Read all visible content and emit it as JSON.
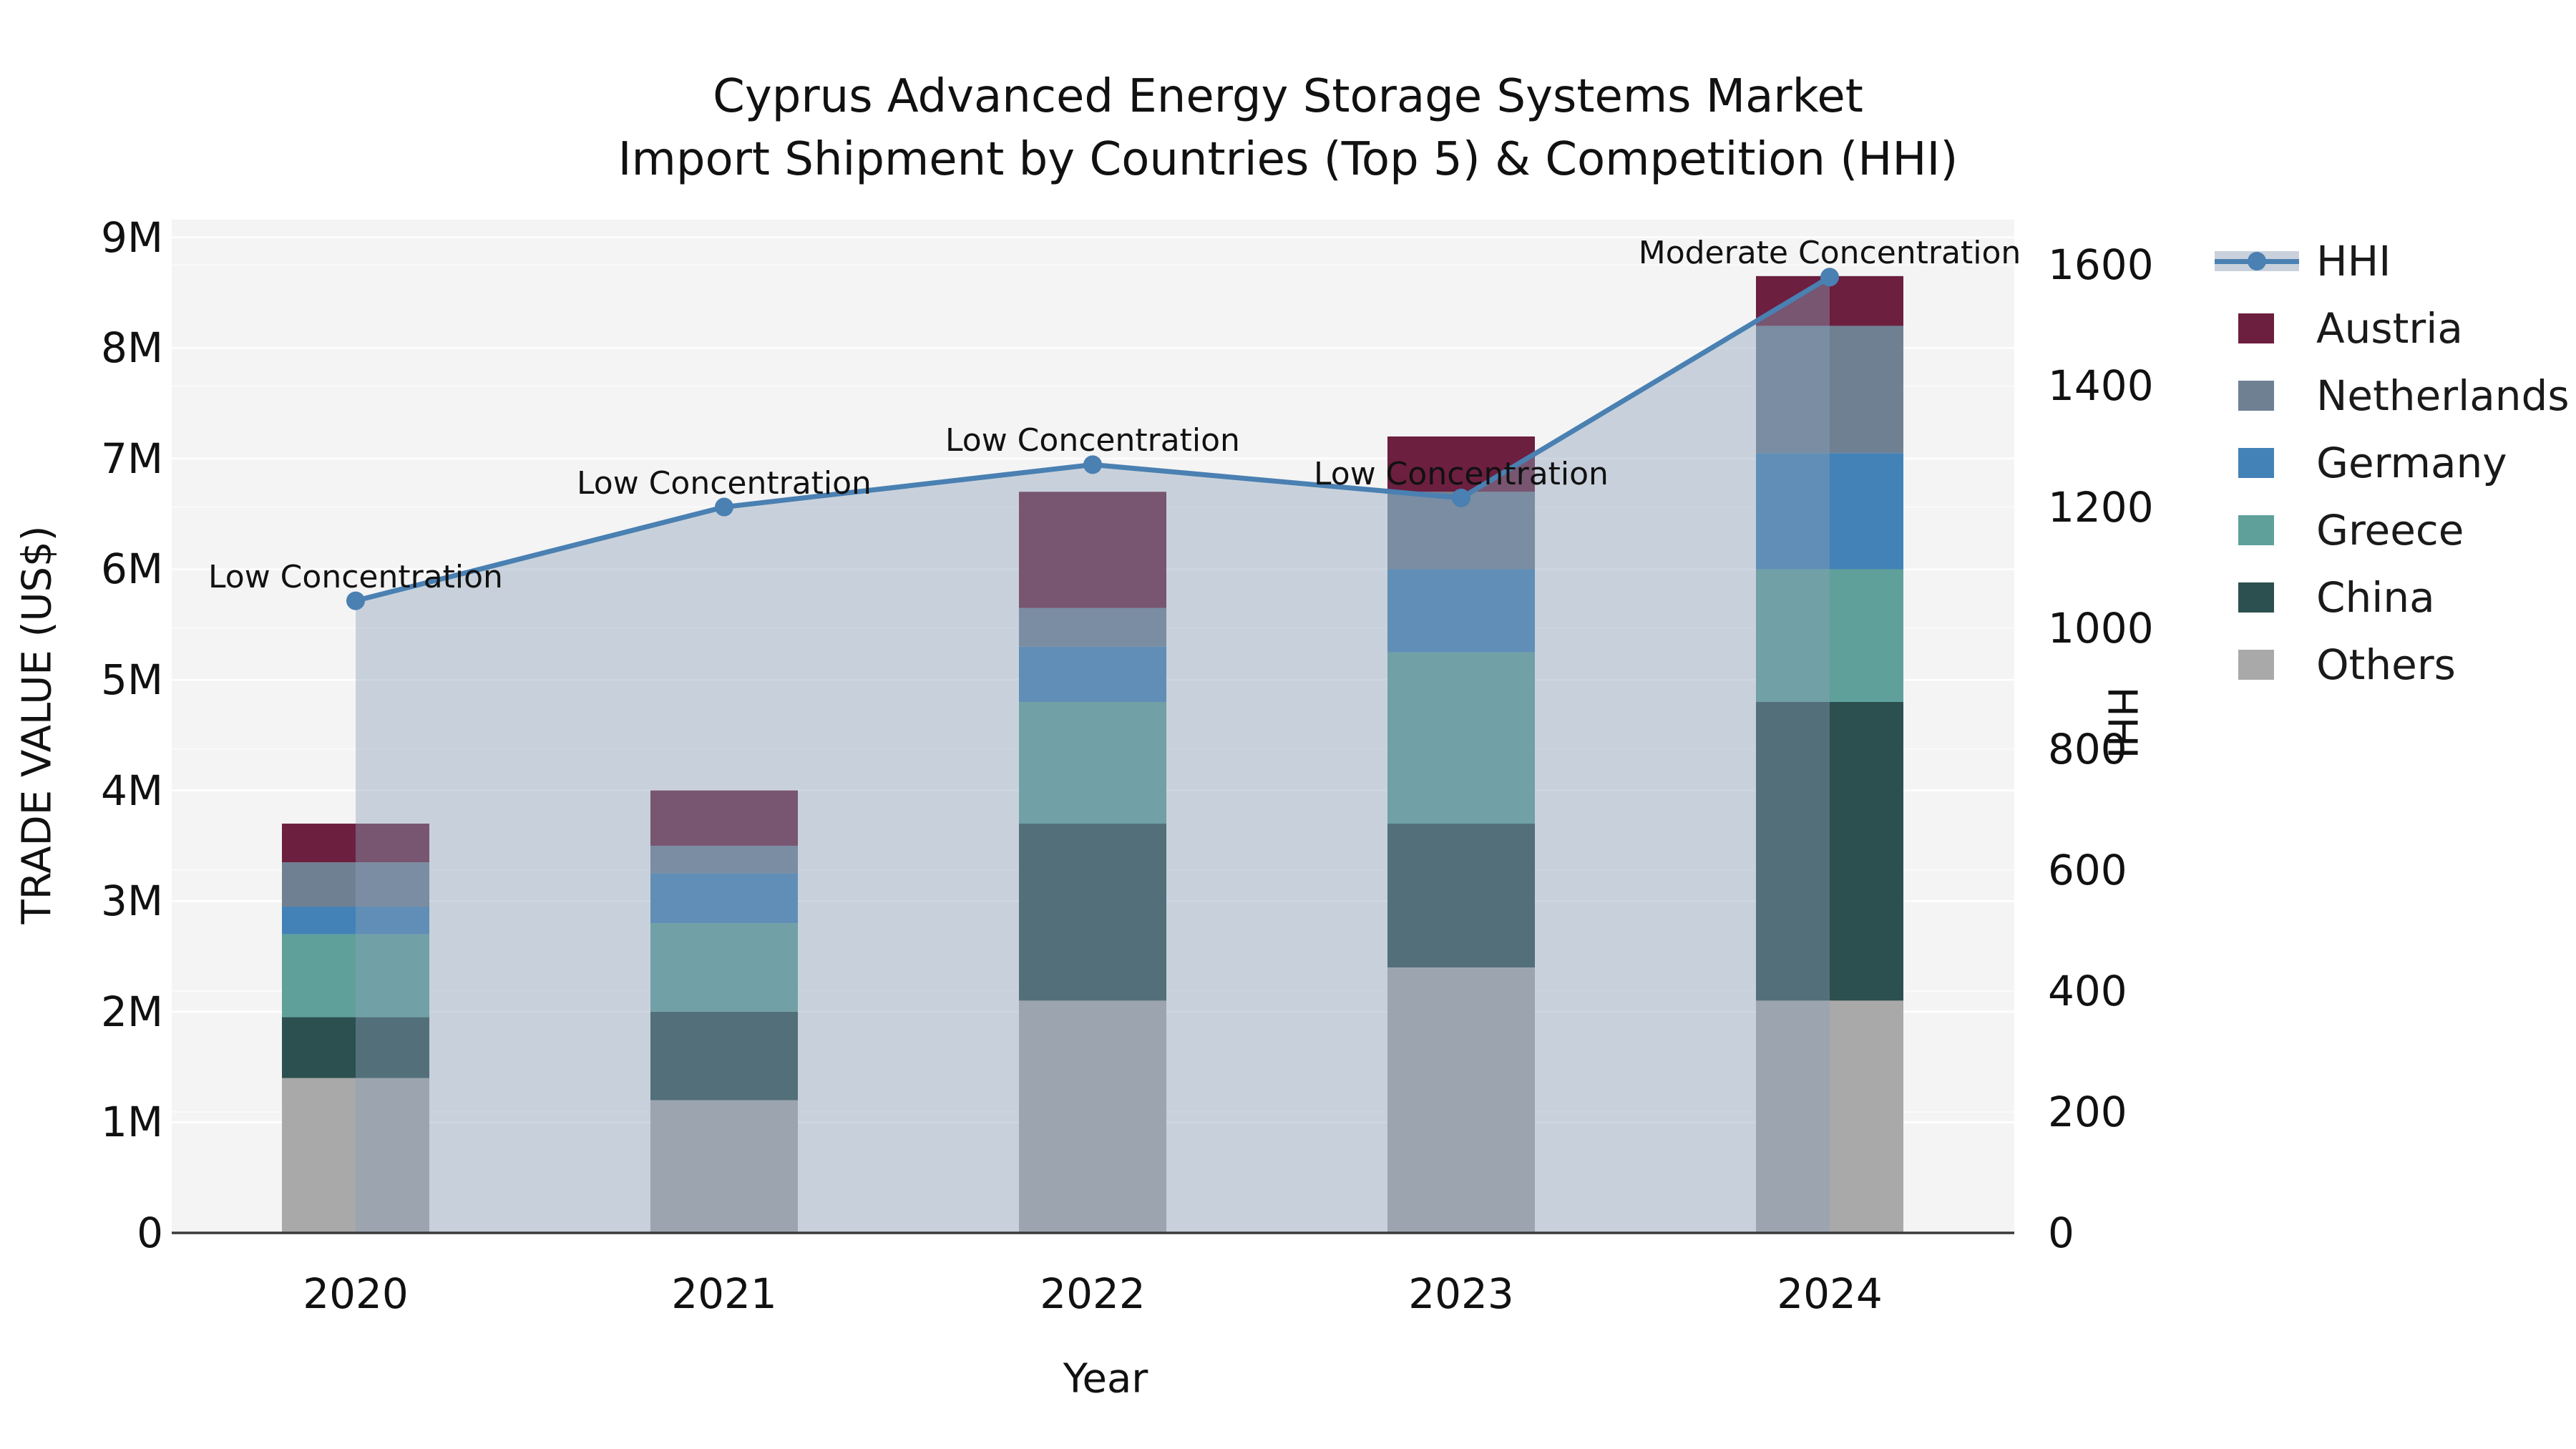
{
  "title": {
    "line1": "Cyprus Advanced Energy Storage Systems Market",
    "line2": "Import Shipment by Countries (Top 5) & Competition (HHI)"
  },
  "chart_data": {
    "type": "bar",
    "subtype": "stacked-bars-with-line-overlay",
    "categories": [
      "2020",
      "2021",
      "2022",
      "2023",
      "2024"
    ],
    "series": [
      {
        "name": "Others",
        "color": "#a9a9a9",
        "values": [
          1.4,
          1.2,
          2.1,
          2.4,
          2.1
        ]
      },
      {
        "name": "China",
        "color": "#2c4f4f",
        "values": [
          0.55,
          0.8,
          1.6,
          1.3,
          2.7
        ]
      },
      {
        "name": "Greece",
        "color": "#5fa09b",
        "values": [
          0.75,
          0.8,
          1.1,
          1.55,
          1.2
        ]
      },
      {
        "name": "Germany",
        "color": "#4382b6",
        "values": [
          0.25,
          0.45,
          0.5,
          0.75,
          1.05
        ]
      },
      {
        "name": "Netherlands",
        "color": "#6f8093",
        "values": [
          0.4,
          0.25,
          0.35,
          0.7,
          1.15
        ]
      },
      {
        "name": "Austria",
        "color": "#6c1f3f",
        "values": [
          0.35,
          0.5,
          1.05,
          0.5,
          0.45
        ]
      }
    ],
    "values_unit": "millions US$",
    "totals": [
      3.7,
      4.0,
      6.7,
      7.2,
      8.65
    ],
    "line_series": {
      "name": "HHI",
      "color": "#4a80b2",
      "area_fill": "rgba(139,160,184,0.42)",
      "values": [
        1045,
        1200,
        1270,
        1215,
        1580
      ]
    },
    "annotations": [
      "Low Concentration",
      "Low Concentration",
      "Low Concentration",
      "Low Concentration",
      "Moderate Concentration"
    ],
    "xlabel": "Year",
    "ylabel": "TRADE VALUE (US$)",
    "y2label": "HHI",
    "y_ticks": {
      "labels": [
        "0",
        "1M",
        "2M",
        "3M",
        "4M",
        "5M",
        "6M",
        "7M",
        "8M",
        "9M"
      ],
      "values": [
        0,
        1,
        2,
        3,
        4,
        5,
        6,
        7,
        8,
        9
      ]
    },
    "y2_ticks": {
      "labels": [
        "0",
        "200",
        "400",
        "600",
        "800",
        "1000",
        "1200",
        "1400",
        "1600"
      ],
      "values": [
        0,
        200,
        400,
        600,
        800,
        1000,
        1200,
        1400,
        1600
      ]
    },
    "ylim": [
      0,
      9.16
    ],
    "y2lim": [
      0,
      1675
    ],
    "grid": true,
    "plot_background": "#f4f4f4",
    "gridline_color": "#ffffff",
    "baseline_color": "#3a3a3a",
    "legend_position": "right"
  },
  "legend": {
    "items": [
      {
        "label": "HHI",
        "type": "line",
        "color": "#4a80b2"
      },
      {
        "label": "Austria",
        "type": "patch",
        "color": "#6c1f3f"
      },
      {
        "label": "Netherlands",
        "type": "patch",
        "color": "#6f8093"
      },
      {
        "label": "Germany",
        "type": "patch",
        "color": "#4382b6"
      },
      {
        "label": "Greece",
        "type": "patch",
        "color": "#5fa09b"
      },
      {
        "label": "China",
        "type": "patch",
        "color": "#2c4f4f"
      },
      {
        "label": "Others",
        "type": "patch",
        "color": "#a9a9a9"
      }
    ]
  }
}
